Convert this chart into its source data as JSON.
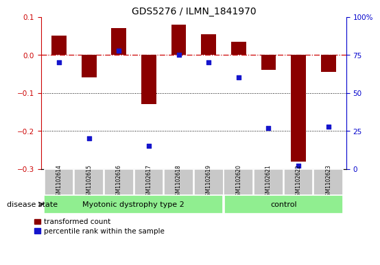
{
  "title": "GDS5276 / ILMN_1841970",
  "samples": [
    "GSM1102614",
    "GSM1102615",
    "GSM1102616",
    "GSM1102617",
    "GSM1102618",
    "GSM1102619",
    "GSM1102620",
    "GSM1102621",
    "GSM1102622",
    "GSM1102623"
  ],
  "red_bars": [
    0.05,
    -0.06,
    0.07,
    -0.13,
    0.08,
    0.055,
    0.035,
    -0.04,
    -0.28,
    -0.045
  ],
  "blue_dots": [
    70,
    20,
    78,
    15,
    75,
    70,
    60,
    27,
    2,
    28
  ],
  "group1_label": "Myotonic dystrophy type 2",
  "group1_samples": 6,
  "group2_label": "control",
  "group2_samples": 4,
  "ylim_left": [
    -0.3,
    0.1
  ],
  "ylim_right": [
    0,
    100
  ],
  "yticks_left": [
    0.1,
    0.0,
    -0.1,
    -0.2,
    -0.3
  ],
  "yticks_right": [
    100,
    75,
    50,
    25,
    0
  ],
  "dotted_lines": [
    -0.1,
    -0.2
  ],
  "bar_color": "#8B0000",
  "dot_color": "#1515cc",
  "group_color": "#90EE90",
  "sample_box_color": "#C8C8C8",
  "disease_state_label": "disease state",
  "legend_bar_label": "transformed count",
  "legend_dot_label": "percentile rank within the sample",
  "bar_width": 0.5,
  "left_color": "#CC0000",
  "right_color": "#0000CC"
}
